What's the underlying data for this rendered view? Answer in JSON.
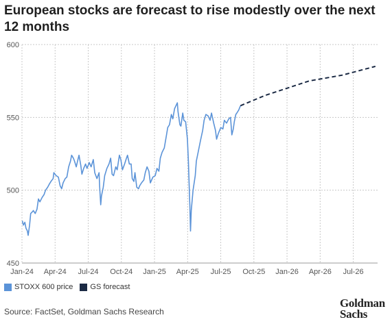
{
  "title": "European stocks are forecast to rise modestly over the next 12 months",
  "source": "Source: FactSet, Goldman Sachs Research",
  "logo_text": "Goldman Sachs",
  "chart_data": {
    "type": "line",
    "x_ticks": [
      "Jan-24",
      "Apr-24",
      "Jul-24",
      "Oct-24",
      "Jan-25",
      "Apr-25",
      "Jul-25",
      "Oct-25",
      "Jan-26",
      "Apr-26",
      "Jul-26"
    ],
    "y_ticks": [
      "450",
      "500",
      "550",
      "600"
    ],
    "ylim": [
      450,
      600
    ],
    "grid": true,
    "legend_position": "bottom-left",
    "colors": {
      "price": "#5b93d8",
      "forecast": "#1b2a44",
      "grid": "#c8c8c8",
      "axis": "#999999"
    },
    "series": [
      {
        "name": "STOXX 600 price",
        "style": "solid",
        "points": [
          [
            "2024-01-02",
            479
          ],
          [
            "2024-01-05",
            476
          ],
          [
            "2024-01-09",
            478
          ],
          [
            "2024-01-12",
            474
          ],
          [
            "2024-01-16",
            472
          ],
          [
            "2024-01-18",
            469
          ],
          [
            "2024-01-22",
            476
          ],
          [
            "2024-01-25",
            484
          ],
          [
            "2024-01-29",
            485
          ],
          [
            "2024-02-02",
            486
          ],
          [
            "2024-02-07",
            484
          ],
          [
            "2024-02-12",
            487
          ],
          [
            "2024-02-16",
            494
          ],
          [
            "2024-02-20",
            492
          ],
          [
            "2024-02-26",
            495
          ],
          [
            "2024-03-01",
            497
          ],
          [
            "2024-03-05",
            500
          ],
          [
            "2024-03-11",
            502
          ],
          [
            "2024-03-15",
            504
          ],
          [
            "2024-03-20",
            506
          ],
          [
            "2024-03-26",
            508
          ],
          [
            "2024-03-28",
            512
          ],
          [
            "2024-04-04",
            510
          ],
          [
            "2024-04-10",
            509
          ],
          [
            "2024-04-15",
            503
          ],
          [
            "2024-04-19",
            501
          ],
          [
            "2024-04-23",
            505
          ],
          [
            "2024-04-29",
            508
          ],
          [
            "2024-05-03",
            509
          ],
          [
            "2024-05-08",
            516
          ],
          [
            "2024-05-13",
            520
          ],
          [
            "2024-05-16",
            524
          ],
          [
            "2024-05-21",
            522
          ],
          [
            "2024-05-24",
            520
          ],
          [
            "2024-05-29",
            516
          ],
          [
            "2024-06-03",
            521
          ],
          [
            "2024-06-06",
            524
          ],
          [
            "2024-06-11",
            517
          ],
          [
            "2024-06-14",
            511
          ],
          [
            "2024-06-19",
            515
          ],
          [
            "2024-06-24",
            518
          ],
          [
            "2024-06-28",
            515
          ],
          [
            "2024-07-04",
            519
          ],
          [
            "2024-07-09",
            516
          ],
          [
            "2024-07-15",
            521
          ],
          [
            "2024-07-19",
            512
          ],
          [
            "2024-07-25",
            508
          ],
          [
            "2024-07-31",
            512
          ],
          [
            "2024-08-02",
            503
          ],
          [
            "2024-08-05",
            490
          ],
          [
            "2024-08-07",
            496
          ],
          [
            "2024-08-12",
            502
          ],
          [
            "2024-08-16",
            510
          ],
          [
            "2024-08-22",
            515
          ],
          [
            "2024-08-28",
            518
          ],
          [
            "2024-09-02",
            522
          ],
          [
            "2024-09-06",
            511
          ],
          [
            "2024-09-10",
            510
          ],
          [
            "2024-09-16",
            516
          ],
          [
            "2024-09-20",
            514
          ],
          [
            "2024-09-26",
            524
          ],
          [
            "2024-09-30",
            521
          ],
          [
            "2024-10-04",
            514
          ],
          [
            "2024-10-10",
            518
          ],
          [
            "2024-10-15",
            522
          ],
          [
            "2024-10-18",
            524
          ],
          [
            "2024-10-23",
            518
          ],
          [
            "2024-10-28",
            518
          ],
          [
            "2024-10-31",
            508
          ],
          [
            "2024-11-05",
            506
          ],
          [
            "2024-11-08",
            512
          ],
          [
            "2024-11-13",
            502
          ],
          [
            "2024-11-18",
            501
          ],
          [
            "2024-11-21",
            503
          ],
          [
            "2024-11-26",
            505
          ],
          [
            "2024-12-02",
            507
          ],
          [
            "2024-12-06",
            512
          ],
          [
            "2024-12-11",
            516
          ],
          [
            "2024-12-16",
            513
          ],
          [
            "2024-12-20",
            505
          ],
          [
            "2024-12-27",
            509
          ],
          [
            "2025-01-03",
            510
          ],
          [
            "2025-01-08",
            515
          ],
          [
            "2025-01-13",
            513
          ],
          [
            "2025-01-17",
            522
          ],
          [
            "2025-01-22",
            526
          ],
          [
            "2025-01-28",
            529
          ],
          [
            "2025-02-03",
            537
          ],
          [
            "2025-02-07",
            543
          ],
          [
            "2025-02-12",
            545
          ],
          [
            "2025-02-17",
            552
          ],
          [
            "2025-02-21",
            549
          ],
          [
            "2025-02-26",
            556
          ],
          [
            "2025-03-03",
            560
          ],
          [
            "2025-03-05",
            554
          ],
          [
            "2025-03-10",
            545
          ],
          [
            "2025-03-13",
            544
          ],
          [
            "2025-03-18",
            553
          ],
          [
            "2025-03-21",
            548
          ],
          [
            "2025-03-26",
            547
          ],
          [
            "2025-03-31",
            535
          ],
          [
            "2025-04-03",
            520
          ],
          [
            "2025-04-07",
            490
          ],
          [
            "2025-04-09",
            472
          ],
          [
            "2025-04-11",
            486
          ],
          [
            "2025-04-16",
            500
          ],
          [
            "2025-04-22",
            510
          ],
          [
            "2025-04-25",
            520
          ],
          [
            "2025-04-30",
            526
          ],
          [
            "2025-05-06",
            534
          ],
          [
            "2025-05-12",
            541
          ],
          [
            "2025-05-16",
            548
          ],
          [
            "2025-05-21",
            552
          ],
          [
            "2025-05-27",
            551
          ],
          [
            "2025-06-02",
            548
          ],
          [
            "2025-06-06",
            553
          ],
          [
            "2025-06-12",
            546
          ],
          [
            "2025-06-17",
            541
          ],
          [
            "2025-06-20",
            535
          ],
          [
            "2025-06-25",
            539
          ],
          [
            "2025-07-01",
            543
          ],
          [
            "2025-07-07",
            542
          ],
          [
            "2025-07-11",
            548
          ],
          [
            "2025-07-17",
            546
          ],
          [
            "2025-07-23",
            549
          ],
          [
            "2025-07-28",
            550
          ],
          [
            "2025-08-01",
            538
          ],
          [
            "2025-08-05",
            542
          ],
          [
            "2025-08-08",
            547
          ],
          [
            "2025-08-12",
            552
          ],
          [
            "2025-08-15",
            553
          ],
          [
            "2025-08-20",
            555
          ],
          [
            "2025-08-25",
            558
          ]
        ]
      },
      {
        "name": "GS forecast",
        "style": "dashed",
        "points": [
          [
            "2025-08-25",
            558
          ],
          [
            "2025-11-01",
            565
          ],
          [
            "2026-01-01",
            570
          ],
          [
            "2026-03-01",
            575
          ],
          [
            "2026-06-01",
            579
          ],
          [
            "2026-09-01",
            585
          ]
        ]
      }
    ]
  }
}
